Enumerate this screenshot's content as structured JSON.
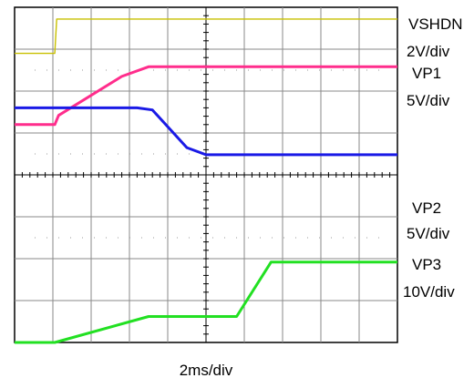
{
  "chart_data": {
    "type": "line",
    "xlabel": "2ms/div",
    "grid": true,
    "x_divisions": 10,
    "y_divisions": 8,
    "time_per_div_ms": 2,
    "series": [
      {
        "name": "VSHDN",
        "scale": "2V/div",
        "color": "#c8c000",
        "points": [
          [
            0,
            1.0
          ],
          [
            1.05,
            1.0
          ],
          [
            1.1,
            1.82
          ],
          [
            10,
            1.82
          ]
        ]
      },
      {
        "name": "VP1",
        "scale": "5V/div",
        "color": "#ff2d8c",
        "points": [
          [
            0,
            0.0
          ],
          [
            1.05,
            0.0
          ],
          [
            1.15,
            0.22
          ],
          [
            2.8,
            1.15
          ],
          [
            3.5,
            1.38
          ],
          [
            10,
            1.38
          ]
        ]
      },
      {
        "name": "VP2",
        "scale": "5V/div",
        "color": "#1a1ae6",
        "points": [
          [
            0,
            2.4
          ],
          [
            3.2,
            2.4
          ],
          [
            3.6,
            2.35
          ],
          [
            4.5,
            1.45
          ],
          [
            5.0,
            1.28
          ],
          [
            10,
            1.28
          ]
        ]
      },
      {
        "name": "VP3",
        "scale": "10V/div",
        "color": "#22e022",
        "points": [
          [
            0,
            0.0
          ],
          [
            1.05,
            0.0
          ],
          [
            3.5,
            0.62
          ],
          [
            5.8,
            0.62
          ],
          [
            6.7,
            1.92
          ],
          [
            10,
            1.92
          ]
        ]
      }
    ],
    "reference_lines": [
      {
        "series": "VP1",
        "div": 2.0
      },
      {
        "series": "VP2",
        "div": 4.0
      },
      {
        "series": "VP3",
        "div": 6.0
      }
    ]
  }
}
